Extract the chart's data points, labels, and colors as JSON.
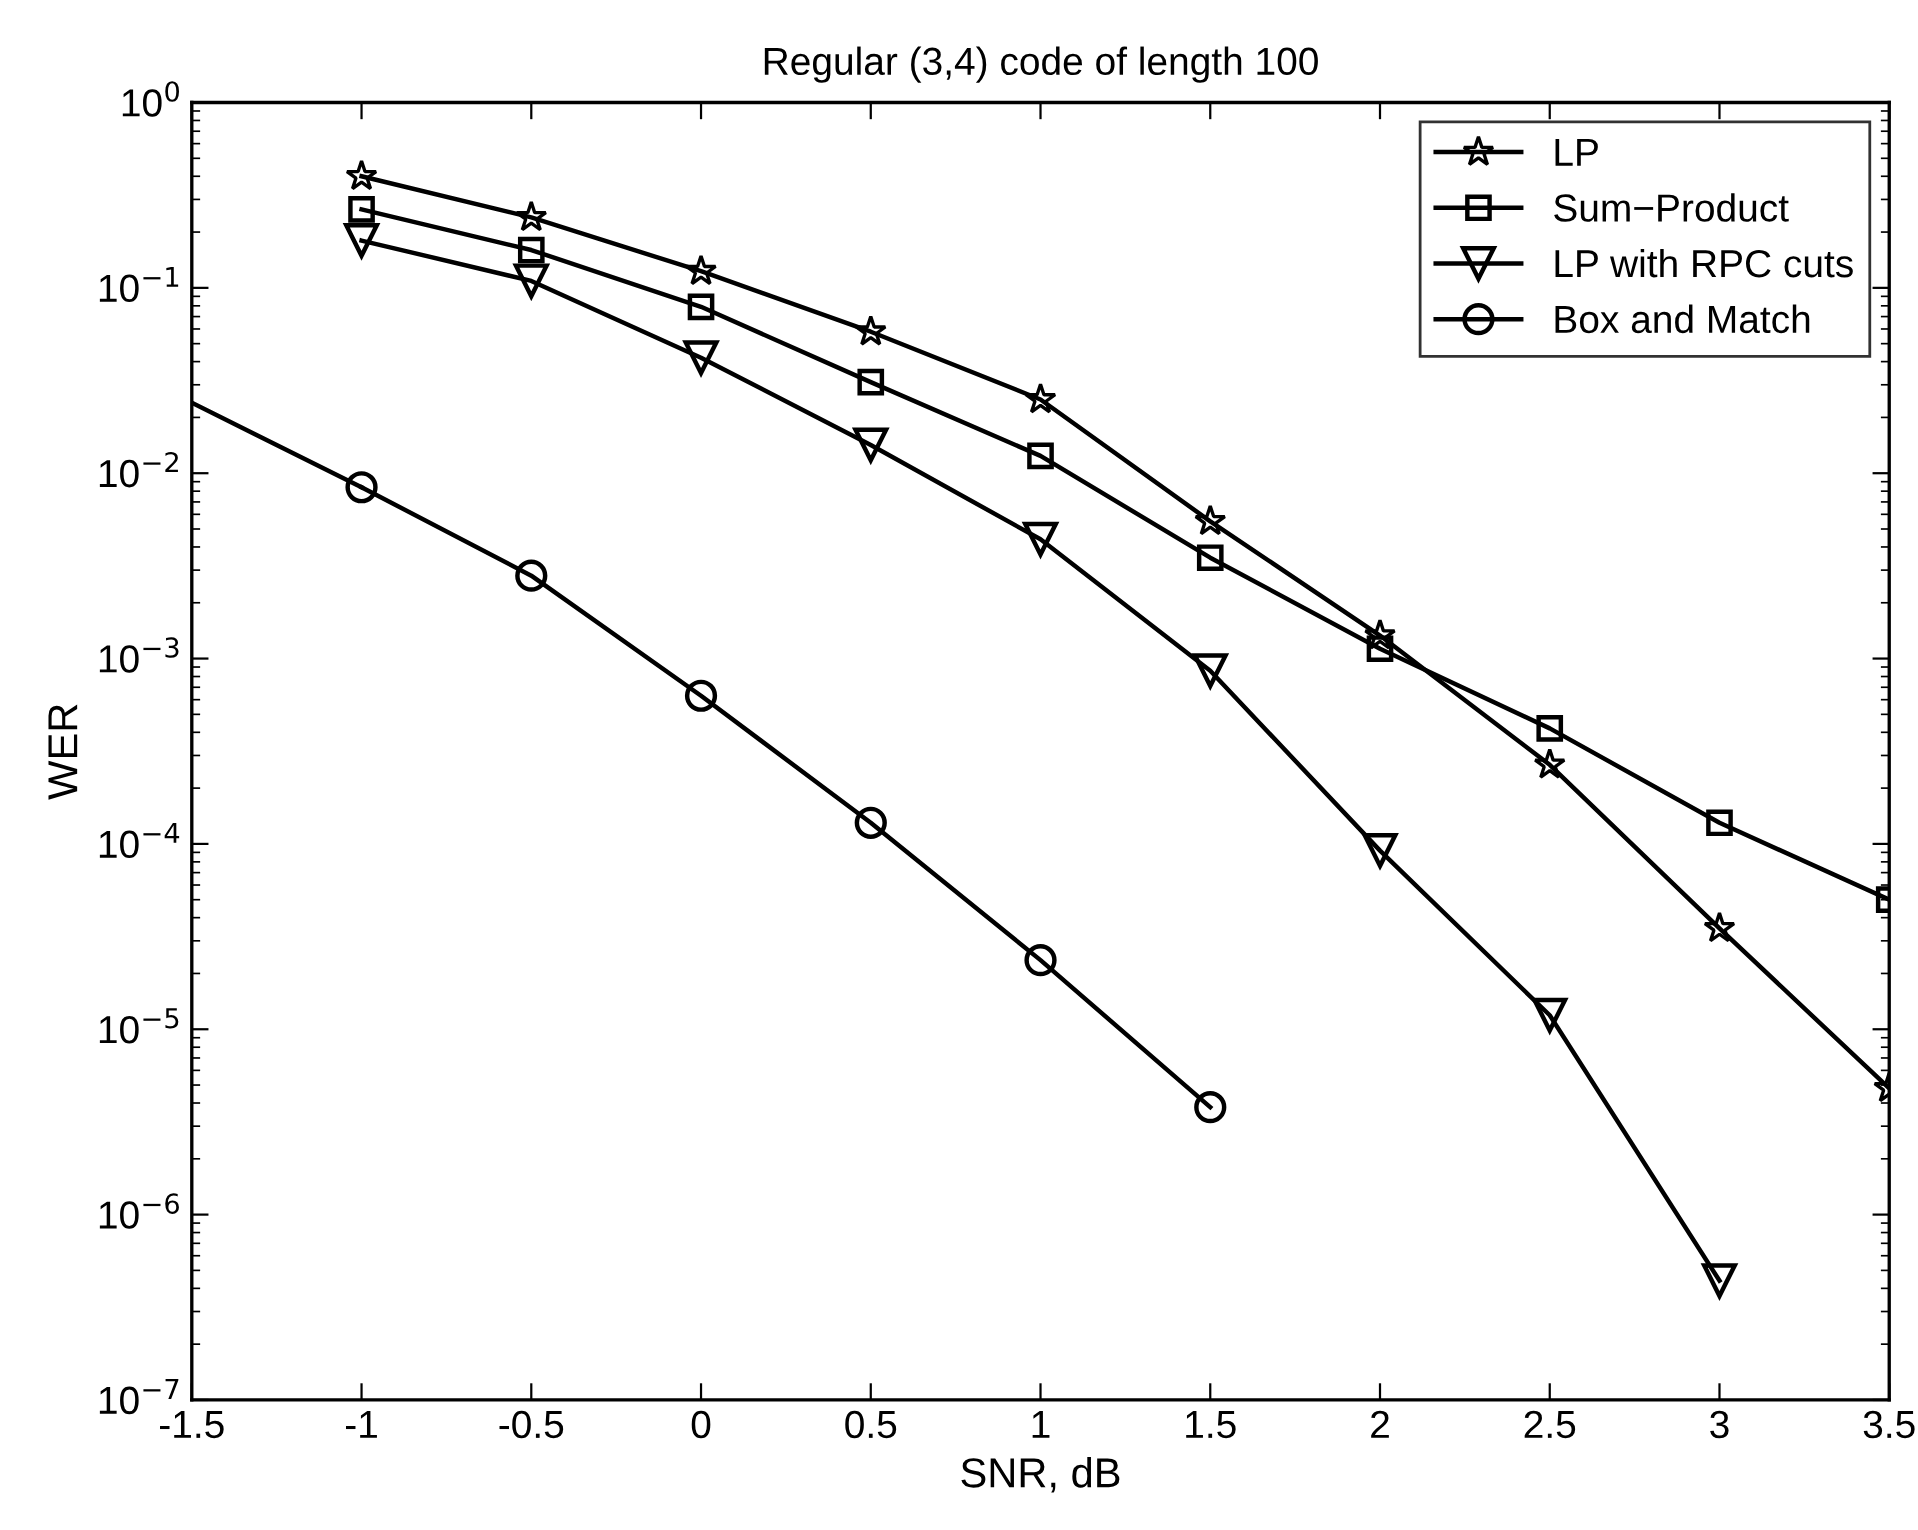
{
  "chart_data": {
    "type": "line",
    "title": "Regular (3,4) code of length 100",
    "xlabel": "SNR, dB",
    "ylabel": "WER",
    "log": "y",
    "grid": false,
    "legend": "top right",
    "xlim": [
      -1.5,
      3.5
    ],
    "xticks": [
      -1.5,
      -1,
      -0.5,
      0,
      0.5,
      1,
      1.5,
      2,
      2.5,
      3,
      3.5
    ],
    "ylim": [
      1e-07,
      1
    ],
    "yticks": [
      {
        "value": 1e-07,
        "label": "10$^{−7}$"
      },
      {
        "value": 1e-06,
        "label": "10$^{−6}$"
      },
      {
        "value": 1e-05,
        "label": "10$^{−5}$"
      },
      {
        "value": 0.0001,
        "label": "10$^{−4}$"
      },
      {
        "value": 0.001,
        "label": "10$^{−3}$"
      },
      {
        "value": 0.01,
        "label": "10$^{−2}$"
      },
      {
        "value": 0.1,
        "label": "10$^{−1}$"
      },
      {
        "value": 1,
        "label": "10$^{0}$"
      }
    ],
    "series": [
      {
        "name": "LP",
        "color": "#000000",
        "marker": "star",
        "x": [
          -1,
          -0.5,
          0,
          0.5,
          1,
          1.5,
          2,
          2.5,
          3,
          3.5
        ],
        "values": [
          0.4,
          0.24,
          0.123,
          0.058,
          0.025,
          0.0055,
          0.00133,
          0.000267,
          3.5e-05,
          4.8e-06
        ]
      },
      {
        "name": "Sum−Product",
        "color": "#000000",
        "marker": "square",
        "x": [
          -1,
          -0.5,
          0,
          0.5,
          1,
          1.5,
          2,
          2.5,
          3,
          3.5
        ],
        "values": [
          0.265,
          0.16,
          0.079,
          0.031,
          0.0124,
          0.0035,
          0.00113,
          0.00042,
          0.00013,
          5e-05
        ]
      },
      {
        "name": "LP with RPC cuts",
        "color": "#000000",
        "marker": "triangle",
        "x": [
          -1,
          -0.5,
          0,
          0.5,
          1,
          1.5,
          2,
          2.5,
          3
        ],
        "values": [
          0.18,
          0.109,
          0.042,
          0.0142,
          0.0044,
          0.00086,
          9.2e-05,
          1.19e-05,
          4.4e-07
        ]
      },
      {
        "name": "Box and Match",
        "color": "#000000",
        "marker": "circle",
        "x": [
          -1,
          -0.5,
          0,
          0.5,
          1,
          1.5
        ],
        "values": [
          0.0084,
          0.0028,
          0.00063,
          0.00013,
          2.36e-05,
          3.8e-06
        ]
      },
      {
        "color": "#000000",
        "marker": "none",
        "x": [
          -1.5,
          -1
        ],
        "values": [
          0.024,
          0.0084
        ]
      }
    ]
  }
}
